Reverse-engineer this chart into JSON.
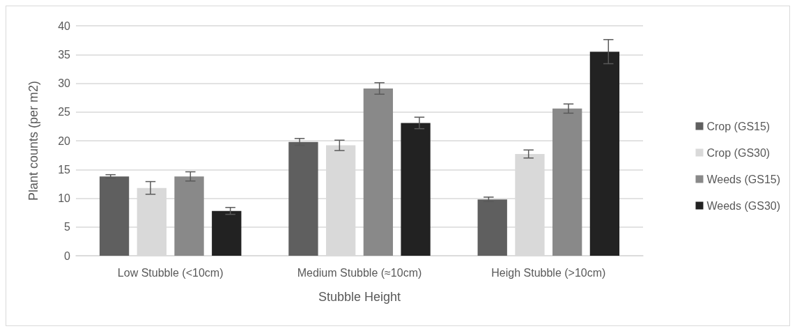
{
  "chart_data": {
    "type": "bar",
    "xlabel": "Stubble Height",
    "ylabel": "Plant counts (per m2)",
    "categories": [
      "Low Stubble (<10cm)",
      "Medium Stubble (≈10cm)",
      "Heigh Stubble (>10cm)"
    ],
    "series": [
      {
        "name": "Crop (GS15)",
        "color": "#5f5f5f",
        "values": [
          13.8,
          19.8,
          9.8
        ],
        "errors": [
          0.3,
          0.6,
          0.4
        ]
      },
      {
        "name": "Crop (GS30)",
        "color": "#d9d9d9",
        "values": [
          11.8,
          19.2,
          17.7
        ],
        "errors": [
          1.1,
          0.9,
          0.7
        ]
      },
      {
        "name": "Weeds (GS15)",
        "color": "#898989",
        "values": [
          13.8,
          29.1,
          25.6
        ],
        "errors": [
          0.8,
          1.0,
          0.8
        ]
      },
      {
        "name": "Weeds (GS30)",
        "color": "#222222",
        "values": [
          7.8,
          23.1,
          35.5
        ],
        "errors": [
          0.6,
          1.0,
          2.1
        ]
      }
    ],
    "ylim": [
      0,
      40
    ],
    "yticks": [
      0,
      5,
      10,
      15,
      20,
      25,
      30,
      35,
      40
    ],
    "grid": "y",
    "legend": "right"
  }
}
